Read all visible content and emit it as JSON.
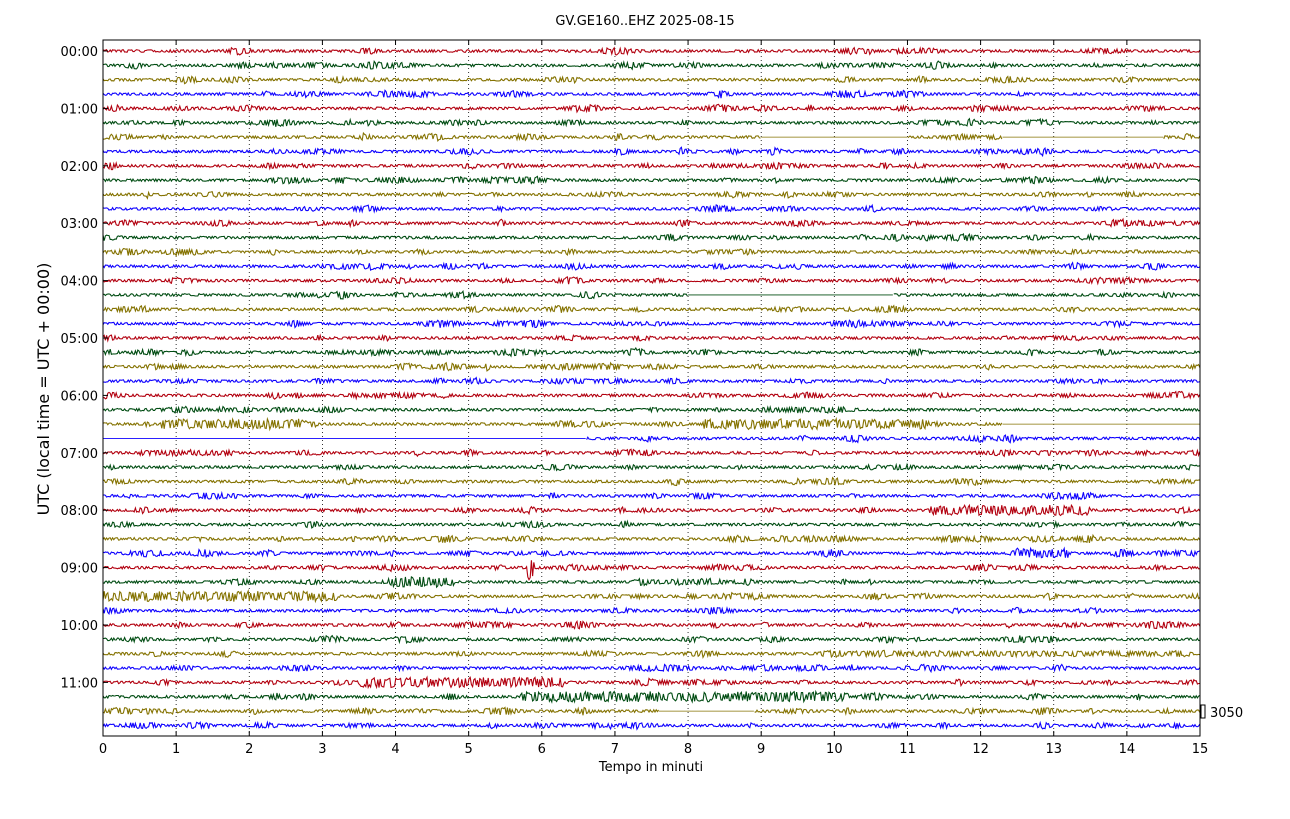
{
  "chart_data": {
    "type": "line",
    "title": "GV.GE160..EHZ 2025-08-15",
    "xlabel": "Tempo in minuti",
    "ylabel": "UTC (local time = UTC + 00:00)",
    "xlim": [
      0,
      15
    ],
    "x_ticks": [
      "0",
      "1",
      "2",
      "3",
      "4",
      "5",
      "6",
      "7",
      "8",
      "9",
      "10",
      "11",
      "12",
      "13",
      "14",
      "15"
    ],
    "y_ticks": [
      "00:00",
      "01:00",
      "02:00",
      "03:00",
      "04:00",
      "05:00",
      "06:00",
      "07:00",
      "08:00",
      "09:00",
      "10:00",
      "11:00"
    ],
    "grid": "vertical dotted at each minute",
    "scale_label": "3050",
    "trace_colors": [
      "#B2000F",
      "#004C12",
      "#847200",
      "#0E01FF"
    ],
    "trace_count": 48,
    "minutes_per_trace": 15,
    "gaps": [
      {
        "trace": 6,
        "from_min": 9.0,
        "to_min": 11.0
      },
      {
        "trace": 6,
        "from_min": 12.3,
        "to_min": 14.5
      },
      {
        "trace": 17,
        "from_min": 8.0,
        "to_min": 10.8
      },
      {
        "trace": 26,
        "from_min": 12.3,
        "to_min": 15.0
      },
      {
        "trace": 27,
        "from_min": 0.0,
        "to_min": 6.6
      },
      {
        "trace": 46,
        "from_min": 7.6,
        "to_min": 8.9
      }
    ],
    "events": [
      {
        "trace": 27,
        "from_min": 0.5,
        "to_min": 5.8,
        "level": "high"
      },
      {
        "trace": 36,
        "from_min": 5.8,
        "to_min": 5.9,
        "level": "spike"
      },
      {
        "trace": 35,
        "from_min": 12.5,
        "to_min": 13.2,
        "level": "high"
      },
      {
        "trace": 32,
        "from_min": 11.3,
        "to_min": 13.5,
        "level": "high"
      },
      {
        "trace": 44,
        "from_min": 3.5,
        "to_min": 6.3,
        "level": "high"
      },
      {
        "trace": 45,
        "from_min": 5.7,
        "to_min": 10.2,
        "level": "high"
      },
      {
        "trace": 26,
        "from_min": 0.8,
        "to_min": 2.8,
        "level": "high"
      },
      {
        "trace": 26,
        "from_min": 8.2,
        "to_min": 11.3,
        "level": "high"
      },
      {
        "trace": 38,
        "from_min": 0.0,
        "to_min": 3.2,
        "level": "high"
      },
      {
        "trace": 37,
        "from_min": 3.9,
        "to_min": 4.8,
        "level": "high"
      },
      {
        "trace": 42,
        "from_min": 10.8,
        "to_min": 14.5,
        "level": "medium"
      },
      {
        "trace": 28,
        "from_min": 0.5,
        "to_min": 1.8,
        "level": "medium"
      }
    ]
  }
}
